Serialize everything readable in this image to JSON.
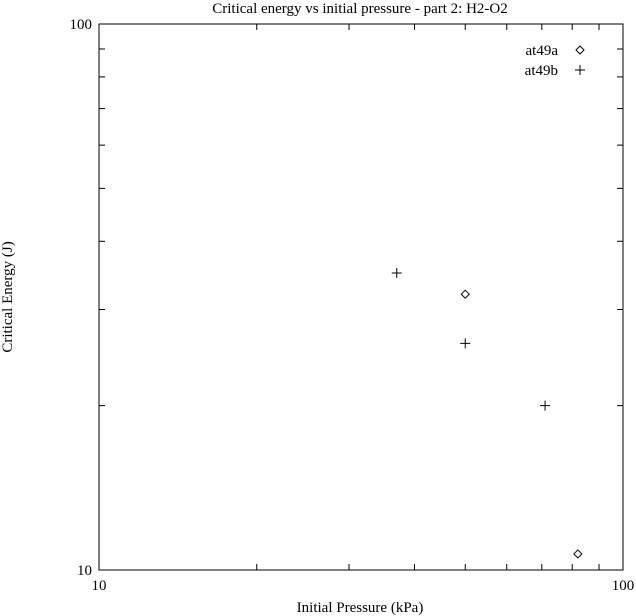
{
  "chart_data": {
    "type": "scatter",
    "title": "Critical energy vs initial pressure - part 2: H2-O2",
    "xlabel": "Initial Pressure (kPa)",
    "ylabel": "Critical Energy (J)",
    "xscale": "log",
    "yscale": "log",
    "xlim": [
      10,
      100
    ],
    "ylim": [
      10,
      100
    ],
    "xticks": [
      10,
      100
    ],
    "yticks": [
      10,
      100
    ],
    "xtick_labels": [
      "10",
      "100"
    ],
    "ytick_labels": [
      "10",
      "100"
    ],
    "grid": false,
    "legend_position": "top-right",
    "series": [
      {
        "name": "at49a",
        "marker": "diamond",
        "points": [
          [
            50,
            32
          ],
          [
            82,
            10.7
          ]
        ]
      },
      {
        "name": "at49b",
        "marker": "plus",
        "points": [
          [
            37,
            35
          ],
          [
            50,
            26
          ],
          [
            71,
            20
          ]
        ]
      }
    ]
  }
}
